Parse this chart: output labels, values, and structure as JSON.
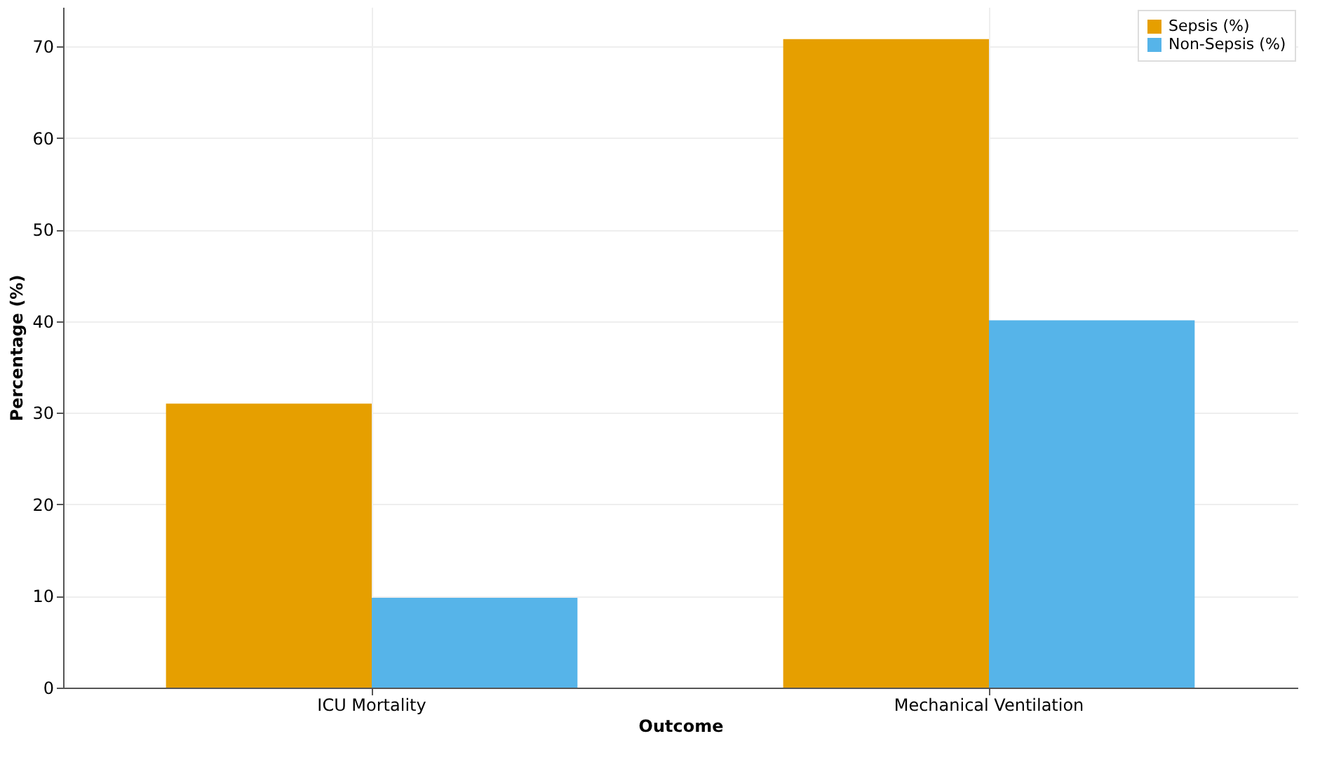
{
  "chart_data": {
    "type": "bar",
    "xlabel": "Outcome",
    "ylabel": "Percentage (%)",
    "categories": [
      "ICU Mortality",
      "Mechanical Ventilation"
    ],
    "series": [
      {
        "name": "Sepsis (%)",
        "color": "#e69f00",
        "values": [
          31.0,
          70.8
        ]
      },
      {
        "name": "Non-Sepsis (%)",
        "color": "#56b4e9",
        "values": [
          9.8,
          40.1
        ]
      }
    ],
    "ylim": [
      0,
      74.3
    ],
    "yticks": [
      0,
      10,
      20,
      30,
      40,
      50,
      60,
      70
    ],
    "grid": true,
    "legend": "top right"
  }
}
